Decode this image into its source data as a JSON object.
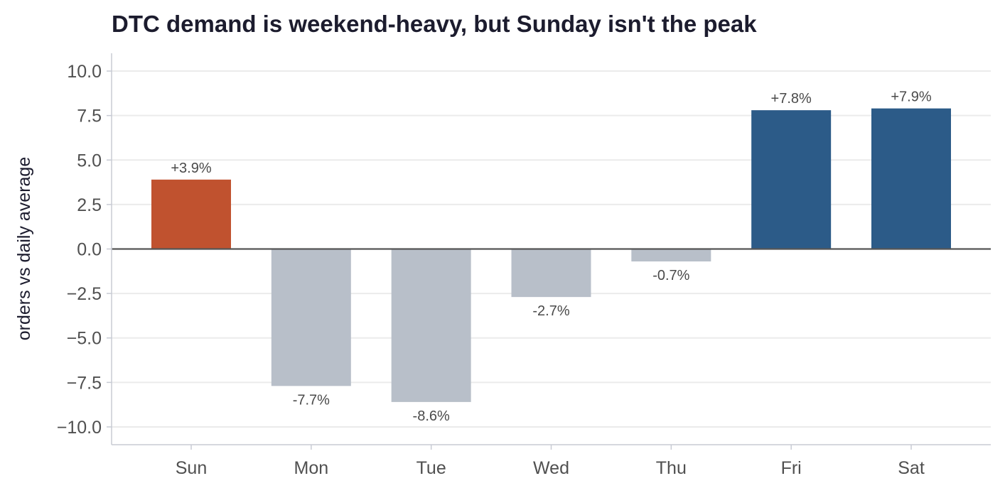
{
  "chart_data": {
    "type": "bar",
    "title": "DTC demand is weekend-heavy, but Sunday isn't the peak",
    "xlabel": "",
    "ylabel": "orders vs daily average",
    "categories": [
      "Sun",
      "Mon",
      "Tue",
      "Wed",
      "Thu",
      "Fri",
      "Sat"
    ],
    "values": [
      3.9,
      -7.7,
      -8.6,
      -2.7,
      -0.7,
      7.8,
      7.9
    ],
    "data_labels": [
      "+3.9%",
      "-7.7%",
      "-8.6%",
      "-2.7%",
      "-0.7%",
      "+7.8%",
      "+7.9%"
    ],
    "bar_colors": [
      "#c0522f",
      "#b8bfc9",
      "#b8bfc9",
      "#b8bfc9",
      "#b8bfc9",
      "#2c5b88",
      "#2c5b88"
    ],
    "yticks": [
      10.0,
      7.5,
      5.0,
      2.5,
      0.0,
      -2.5,
      -5.0,
      -7.5,
      -10.0
    ],
    "ytick_labels": [
      "10.0",
      "7.5",
      "5.0",
      "2.5",
      "0.0",
      "−2.5",
      "−5.0",
      "−7.5",
      "−10.0"
    ],
    "ylim": [
      -11,
      11
    ],
    "grid": "horizontal",
    "legend": "none",
    "colors": {
      "gridline": "#ebebeb",
      "zero_line": "#555555",
      "axis": "#c8cbd4",
      "tick_text": "#505050",
      "label_text": "#4a4a4a",
      "title_text": "#1c1c2e"
    }
  }
}
